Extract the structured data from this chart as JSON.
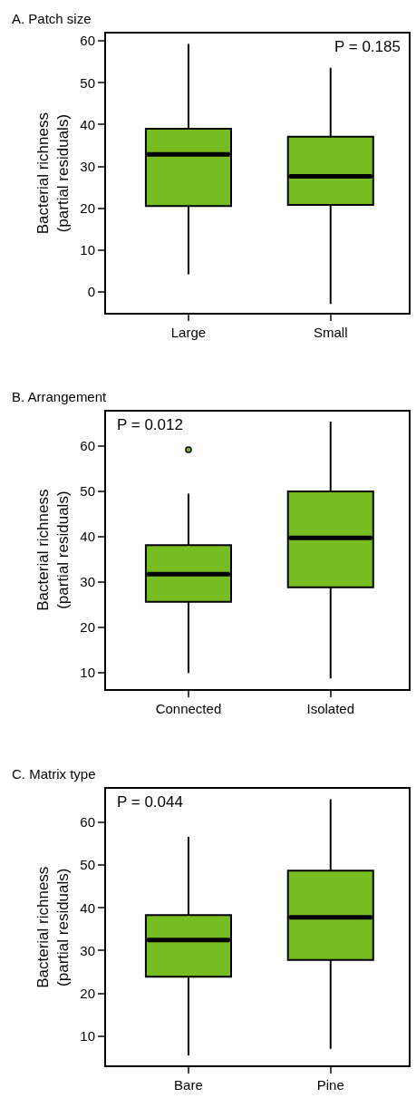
{
  "chart_data": [
    {
      "type": "box",
      "title": "A. Patch size",
      "ylabel": "Bacterial richness\n(partial residuals)",
      "categories": [
        "Large",
        "Small"
      ],
      "color": "#77bc21",
      "ylim": [
        -5.1,
        61.8
      ],
      "yticks": [
        0,
        10,
        20,
        30,
        40,
        50,
        60
      ],
      "annotations": [
        "P = 0.185"
      ],
      "boxes": [
        {
          "low": 4.2,
          "q1": 20.5,
          "median": 32.9,
          "q3": 39,
          "high": 59.3
        },
        {
          "low": -2.9,
          "q1": 20.8,
          "median": 27.6,
          "q3": 37.1,
          "high": 53.6
        }
      ]
    },
    {
      "type": "box",
      "title": "B. Arrangement",
      "ylabel": "Bacterial richness\n(partial residuals)",
      "categories": [
        "Connected",
        "Isolated"
      ],
      "color": "#77bc21",
      "ylim": [
        6.5,
        67.7
      ],
      "yticks": [
        10,
        20,
        30,
        40,
        50,
        60
      ],
      "annotations": [
        "P = 0.012"
      ],
      "boxes": [
        {
          "low": 10,
          "q1": 25.7,
          "median": 31.8,
          "q3": 38.2,
          "high": 49.5,
          "outliers": [
            59.2
          ]
        },
        {
          "low": 8.8,
          "q1": 28.9,
          "median": 39.8,
          "q3": 50,
          "high": 65.4
        }
      ]
    },
    {
      "type": "box",
      "title": "C. Matrix type",
      "ylabel": "Bacterial richness\n(partial residuals)",
      "categories": [
        "Bare",
        "Pine"
      ],
      "color": "#77bc21",
      "ylim": [
        3.1,
        67.8
      ],
      "yticks": [
        10,
        20,
        30,
        40,
        50,
        60
      ],
      "annotations": [
        "P = 0.044"
      ],
      "boxes": [
        {
          "low": 5.5,
          "q1": 23.9,
          "median": 32.5,
          "q3": 38.3,
          "high": 56.6
        },
        {
          "low": 7,
          "q1": 27.8,
          "median": 37.8,
          "q3": 48.7,
          "high": 65.4
        }
      ]
    }
  ]
}
